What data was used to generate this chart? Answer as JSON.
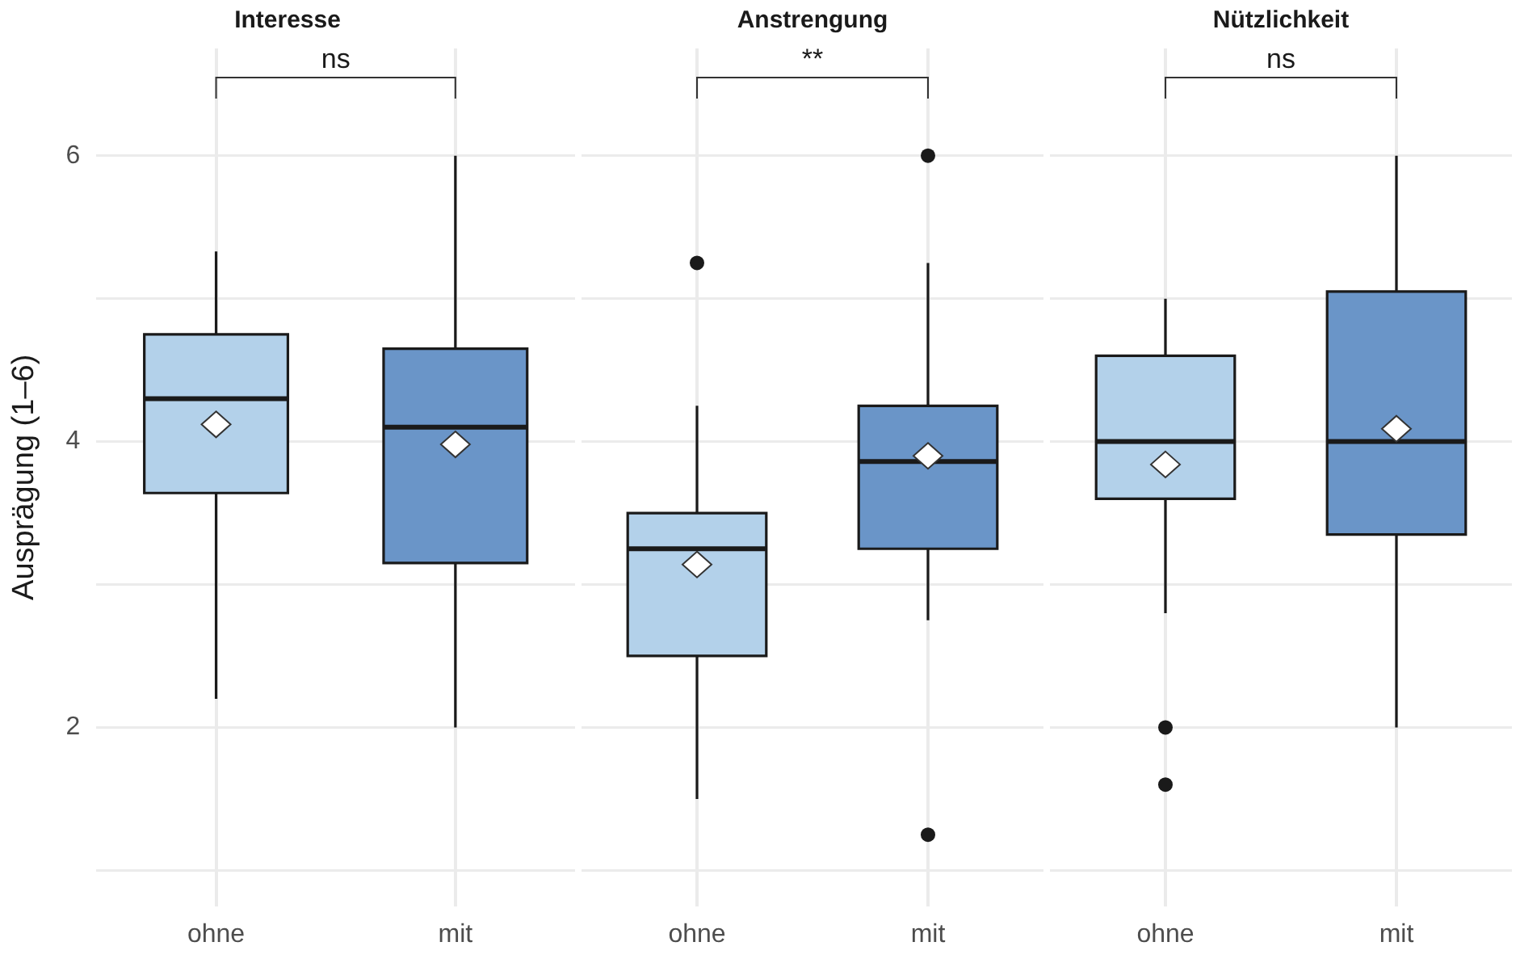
{
  "chart_data": [
    {
      "type": "box",
      "title": "Interesse",
      "ylabel": "Ausprägung (1–6)",
      "categories": [
        "ohne",
        "mit"
      ],
      "colors": [
        "#b3d1ea",
        "#6a95c8"
      ],
      "boxes": [
        {
          "low": 2.2,
          "q1": 3.64,
          "median": 4.3,
          "q3": 4.75,
          "high": 5.33,
          "mean": 4.12
        },
        {
          "low": 2,
          "q1": 3.15,
          "median": 4.1,
          "q3": 4.65,
          "high": 6,
          "mean": 3.98
        }
      ],
      "ylim": [
        0.75,
        6.75
      ],
      "yticks": [
        {
          "value": 1,
          "label": null
        },
        2,
        {
          "value": 3,
          "label": null
        },
        4,
        {
          "value": 5,
          "label": null
        },
        6
      ],
      "grid": true,
      "annotations": [
        "ns"
      ]
    },
    {
      "type": "box",
      "title": "Anstrengung",
      "categories": [
        "ohne",
        "mit"
      ],
      "colors": [
        "#b3d1ea",
        "#6a95c8"
      ],
      "boxes": [
        {
          "low": 1.5,
          "q1": 2.5,
          "median": 3.25,
          "q3": 3.5,
          "high": 4.25,
          "mean": 3.14,
          "outliers": [
            5.25
          ]
        },
        {
          "low": 2.75,
          "q1": 3.25,
          "median": 3.86,
          "q3": 4.25,
          "high": 5.25,
          "mean": 3.9,
          "outliers": [
            6,
            1.25
          ]
        }
      ],
      "ylim": [
        0.75,
        6.75
      ],
      "yticks": [
        {
          "value": 1,
          "label": null
        },
        2,
        {
          "value": 3,
          "label": null
        },
        4,
        {
          "value": 5,
          "label": null
        },
        6
      ],
      "grid": true,
      "tick_labels": "x",
      "annotations": [
        "**"
      ]
    },
    {
      "type": "box",
      "title": "Nützlichkeit",
      "categories": [
        "ohne",
        "mit"
      ],
      "colors": [
        "#b3d1ea",
        "#6a95c8"
      ],
      "boxes": [
        {
          "low": 2.8,
          "q1": 3.6,
          "median": 4,
          "q3": 4.6,
          "high": 5,
          "mean": 3.84,
          "outliers": [
            2,
            1.6
          ]
        },
        {
          "low": 2,
          "q1": 3.35,
          "median": 4,
          "q3": 5.05,
          "high": 6,
          "mean": 4.09
        }
      ],
      "ylim": [
        0.75,
        6.75
      ],
      "yticks": [
        {
          "value": 1,
          "label": null
        },
        2,
        {
          "value": 3,
          "label": null
        },
        4,
        {
          "value": 5,
          "label": null
        },
        6
      ],
      "grid": true,
      "tick_labels": "x",
      "annotations": [
        "ns"
      ]
    }
  ]
}
